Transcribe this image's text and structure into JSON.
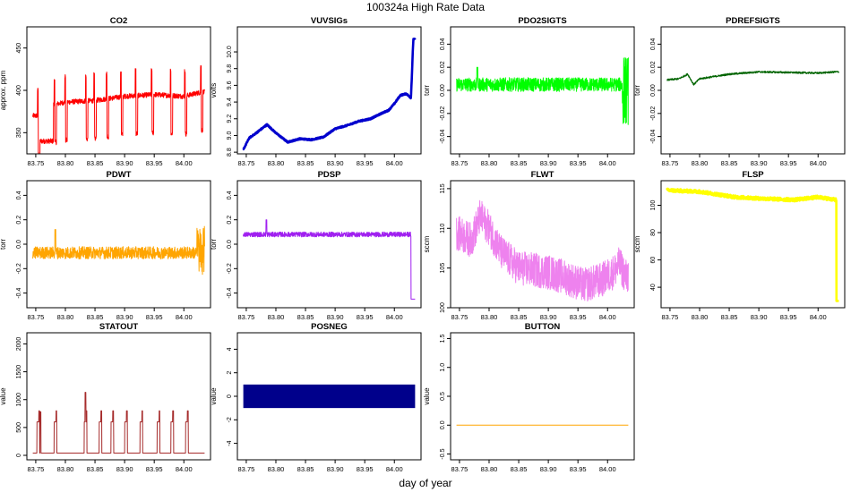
{
  "page_title": "100324a   High Rate Data",
  "xlabel": "day of year",
  "x_ticks": [
    "83.75",
    "83.80",
    "83.85",
    "83.90",
    "83.95",
    "84.00"
  ],
  "chart_data": [
    {
      "type": "line",
      "title": "CO2",
      "ylabel": "approx. ppm",
      "color": "#ff0000",
      "xlim": [
        83.735,
        84.045
      ],
      "ylim": [
        325,
        475
      ],
      "yticks": [
        350,
        400,
        450
      ],
      "style": "co2",
      "grid": false
    },
    {
      "type": "line",
      "title": "VUVSIGs",
      "ylabel": "volts",
      "color": "#0000cd",
      "xlim": [
        83.735,
        84.045
      ],
      "ylim": [
        8.78,
        10.3
      ],
      "yticks": [
        8.8,
        9.0,
        9.2,
        9.4,
        9.6,
        9.8,
        10.0
      ],
      "style": "vuv",
      "grid": false
    },
    {
      "type": "line",
      "title": "PDO2SIGTS",
      "ylabel": "torr",
      "color": "#00ff00",
      "xlim": [
        83.735,
        84.045
      ],
      "ylim": [
        -0.055,
        0.055
      ],
      "yticks": [
        -0.04,
        -0.02,
        0.0,
        0.02,
        0.04
      ],
      "style": "pdo2",
      "grid": false
    },
    {
      "type": "line",
      "title": "PDREFSIGTS",
      "ylabel": "torr",
      "color": "#006400",
      "xlim": [
        83.735,
        84.045
      ],
      "ylim": [
        -0.055,
        0.055
      ],
      "yticks": [
        -0.04,
        -0.02,
        0.0,
        0.02,
        0.04
      ],
      "style": "pdref",
      "grid": false
    },
    {
      "type": "line",
      "title": "PDWT",
      "ylabel": "torr",
      "color": "#ffa500",
      "xlim": [
        83.735,
        84.045
      ],
      "ylim": [
        -0.52,
        0.52
      ],
      "yticks": [
        -0.4,
        -0.2,
        0.0,
        0.2,
        0.4
      ],
      "style": "pdwt",
      "grid": false
    },
    {
      "type": "line",
      "title": "PDSP",
      "ylabel": "torr",
      "color": "#a020f0",
      "xlim": [
        83.735,
        84.045
      ],
      "ylim": [
        -0.52,
        0.52
      ],
      "yticks": [
        -0.4,
        -0.2,
        0.0,
        0.2,
        0.4
      ],
      "style": "pdsp",
      "grid": false
    },
    {
      "type": "line",
      "title": "FLWT",
      "ylabel": "sccm",
      "color": "#ee82ee",
      "xlim": [
        83.735,
        84.045
      ],
      "ylim": [
        100,
        116
      ],
      "yticks": [
        100,
        105,
        110,
        115
      ],
      "style": "flwt",
      "grid": false
    },
    {
      "type": "line",
      "title": "FLSP",
      "ylabel": "sccm",
      "color": "#ffff00",
      "xlim": [
        83.735,
        84.045
      ],
      "ylim": [
        25,
        118
      ],
      "yticks": [
        40,
        60,
        80,
        100
      ],
      "style": "flsp",
      "grid": false
    },
    {
      "type": "line",
      "title": "STATOUT",
      "ylabel": "value",
      "color": "#a52a2a",
      "xlim": [
        83.735,
        84.045
      ],
      "ylim": [
        -80,
        2200
      ],
      "yticks": [
        0,
        500,
        1000,
        1500,
        2000
      ],
      "style": "stat",
      "grid": false
    },
    {
      "type": "area",
      "title": "POSNEG",
      "ylabel": "value",
      "color": "#00008b",
      "xlim": [
        83.735,
        84.045
      ],
      "ylim": [
        -5.4,
        5.4
      ],
      "yticks": [
        -4,
        -2,
        0,
        2,
        4
      ],
      "style": "posneg",
      "grid": false
    },
    {
      "type": "line",
      "title": "BUTTON",
      "ylabel": "value",
      "color": "#ffa500",
      "xlim": [
        83.735,
        84.045
      ],
      "ylim": [
        -0.6,
        1.6
      ],
      "yticks": [
        -0.5,
        0.0,
        0.5,
        1.0,
        1.5
      ],
      "style": "button",
      "grid": false
    }
  ]
}
